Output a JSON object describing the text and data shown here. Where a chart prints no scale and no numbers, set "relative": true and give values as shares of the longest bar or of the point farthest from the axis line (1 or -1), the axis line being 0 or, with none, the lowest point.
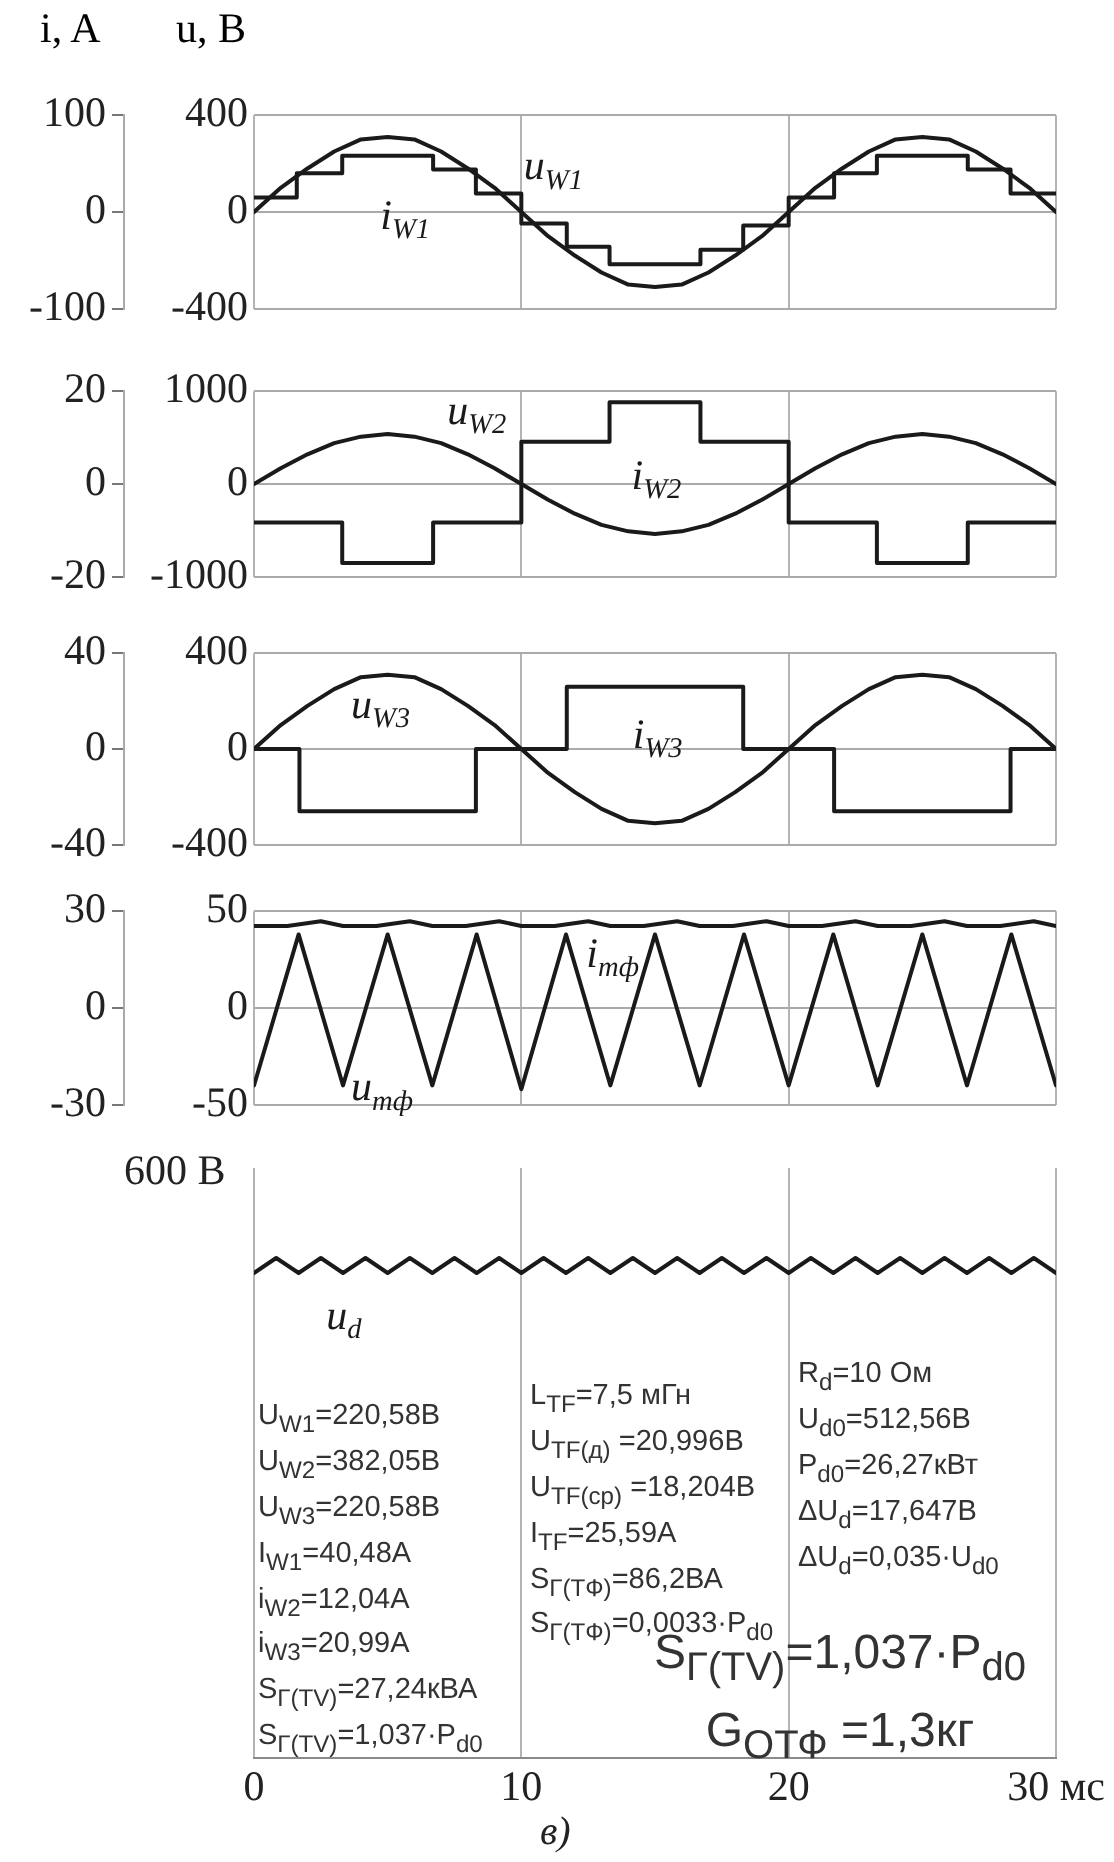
{
  "chart_data": [
    {
      "type": "line",
      "ylabel": "i, A",
      "y2label": "u, В",
      "xlim": [
        0,
        30
      ],
      "xticks": [
        0,
        10,
        20,
        30
      ],
      "ylim": [
        -100,
        100
      ],
      "yticks": [
        -100,
        0,
        100
      ],
      "y2lim": [
        -400,
        400
      ],
      "y2ticks": [
        -400,
        0,
        400
      ],
      "grid": true,
      "tick_labels": "y",
      "series": [
        {
          "name": "u$_{W1}$",
          "axis": "y2",
          "color": "#1a1a1a",
          "x": [
            0,
            1,
            2,
            3,
            4,
            5,
            6,
            7,
            8,
            9,
            10,
            11,
            12,
            13,
            14,
            15,
            16,
            17,
            18,
            19,
            20,
            21,
            22,
            23,
            24,
            25,
            26,
            27,
            28,
            29,
            30
          ],
          "values": [
            0,
            100,
            180,
            250,
            300,
            310,
            300,
            250,
            180,
            100,
            0,
            -100,
            -180,
            -250,
            -300,
            -310,
            -300,
            -250,
            -180,
            -100,
            0,
            100,
            180,
            250,
            300,
            310,
            300,
            250,
            180,
            100,
            0
          ]
        },
        {
          "name": "i$_{W1}$",
          "type": "step",
          "axis": "y",
          "color": "#1a1a1a",
          "x": [
            0,
            1.6,
            3.3,
            6.7,
            8.3,
            10,
            11.7,
            13.3,
            16.7,
            18.3,
            20,
            21.7,
            23.3,
            26.7,
            28.3,
            30
          ],
          "values": [
            15,
            40,
            58,
            44,
            19,
            -12,
            -36,
            -54,
            -39,
            -14,
            15,
            40,
            58,
            44,
            19,
            19
          ]
        }
      ]
    },
    {
      "type": "line",
      "xlim": [
        0,
        30
      ],
      "xticks": [
        0,
        10,
        20,
        30
      ],
      "ylim": [
        -20,
        20
      ],
      "yticks": [
        -20,
        0,
        20
      ],
      "y2lim": [
        -1000,
        1000
      ],
      "y2ticks": [
        -1000,
        0,
        1000
      ],
      "grid": true,
      "tick_labels": "y",
      "series": [
        {
          "name": "u$_{W2}$",
          "axis": "y2",
          "color": "#1a1a1a",
          "x": [
            0,
            1,
            2,
            3,
            4,
            5,
            6,
            7,
            8,
            9,
            10,
            11,
            12,
            13,
            14,
            15,
            16,
            17,
            18,
            19,
            20,
            21,
            22,
            23,
            24,
            25,
            26,
            27,
            28,
            29,
            30
          ],
          "values": [
            0,
            170,
            320,
            440,
            510,
            540,
            510,
            440,
            320,
            170,
            0,
            -170,
            -320,
            -440,
            -510,
            -540,
            -510,
            -440,
            -320,
            -170,
            0,
            170,
            320,
            440,
            510,
            540,
            510,
            440,
            320,
            170,
            0
          ]
        },
        {
          "name": "i$_{W2}$",
          "type": "step",
          "axis": "y",
          "color": "#1a1a1a",
          "x": [
            0,
            3.3,
            6.7,
            10,
            13.3,
            16.7,
            20,
            23.3,
            26.7,
            30
          ],
          "values": [
            -8.3,
            -17,
            -8.3,
            9.1,
            17.6,
            9.1,
            -8.3,
            -17,
            -8.3,
            -8.3
          ]
        }
      ]
    },
    {
      "type": "line",
      "xlim": [
        0,
        30
      ],
      "xticks": [
        0,
        10,
        20,
        30
      ],
      "ylim": [
        -40,
        40
      ],
      "yticks": [
        -40,
        0,
        40
      ],
      "y2lim": [
        -400,
        400
      ],
      "y2ticks": [
        -400,
        0,
        400
      ],
      "grid": true,
      "tick_labels": "y",
      "series": [
        {
          "name": "u$_{W3}$",
          "axis": "y2",
          "color": "#1a1a1a",
          "x": [
            0,
            1,
            2,
            3,
            4,
            5,
            6,
            7,
            8,
            9,
            10,
            11,
            12,
            13,
            14,
            15,
            16,
            17,
            18,
            19,
            20,
            21,
            22,
            23,
            24,
            25,
            26,
            27,
            28,
            29,
            30
          ],
          "values": [
            0,
            100,
            180,
            250,
            300,
            310,
            300,
            250,
            180,
            100,
            0,
            -100,
            -180,
            -250,
            -300,
            -310,
            -300,
            -250,
            -180,
            -100,
            0,
            100,
            180,
            250,
            300,
            310,
            300,
            250,
            180,
            100,
            0
          ]
        },
        {
          "name": "i$_{W3}$",
          "type": "step",
          "axis": "y",
          "color": "#1a1a1a",
          "x": [
            0,
            1.7,
            8.3,
            11.7,
            18.3,
            21.7,
            28.3,
            30
          ],
          "values": [
            0,
            -26,
            0,
            26,
            0,
            -26,
            0,
            0
          ]
        }
      ]
    },
    {
      "type": "line",
      "xlim": [
        0,
        30
      ],
      "xticks": [
        0,
        10,
        20,
        30
      ],
      "ylim": [
        -30,
        30
      ],
      "yticks": [
        -30,
        0,
        30
      ],
      "y2lim": [
        -50,
        50
      ],
      "y2ticks": [
        -50,
        0,
        50
      ],
      "grid": true,
      "tick_labels": "y",
      "series": [
        {
          "name": "i$_{тф}$",
          "axis": "y",
          "color": "#1a1a1a",
          "x": [
            0,
            1.25,
            2.5,
            3.33,
            4.58,
            5.83,
            6.67,
            7.92,
            9.17,
            10,
            11.25,
            12.5,
            13.33,
            14.58,
            15.83,
            16.67,
            17.92,
            19.17,
            20,
            21.25,
            22.5,
            23.33,
            24.58,
            25.83,
            26.67,
            27.92,
            29.17,
            30
          ],
          "values": [
            25.4,
            25.4,
            26.9,
            25.4,
            25.4,
            26.9,
            25.4,
            25.4,
            26.9,
            25.4,
            25.4,
            26.9,
            25.4,
            25.4,
            26.9,
            25.4,
            25.4,
            26.9,
            25.4,
            25.4,
            26.9,
            25.4,
            25.4,
            26.9,
            25.4,
            25.4,
            26.9,
            25.4
          ]
        },
        {
          "name": "u$_{тф}$",
          "axis": "y2",
          "color": "#1a1a1a",
          "x": [
            0,
            1.67,
            3.33,
            5,
            6.67,
            8.33,
            10,
            11.67,
            13.33,
            15,
            16.67,
            18.33,
            20,
            21.67,
            23.33,
            25,
            26.67,
            28.33,
            30
          ],
          "values": [
            -40,
            38,
            -40,
            38,
            -40,
            38,
            -42,
            38,
            -40,
            38,
            -40,
            38,
            -40,
            38,
            -40,
            38,
            -40,
            38,
            -40
          ]
        }
      ]
    },
    {
      "type": "line",
      "relative": true,
      "xlim": [
        0,
        30
      ],
      "xticks": [
        0,
        10,
        20,
        {
          "value": 30,
          "label": "30 мс"
        }
      ],
      "grid": "x",
      "series": [
        {
          "name": "u$_{d}$",
          "color": "#1a1a1a",
          "x": [
            0,
            0.83,
            1.67,
            2.5,
            3.33,
            4.17,
            5,
            5.83,
            6.67,
            7.5,
            8.33,
            9.17,
            10,
            10.83,
            11.67,
            12.5,
            13.33,
            14.17,
            15,
            15.83,
            16.67,
            17.5,
            18.33,
            19.17,
            20,
            20.83,
            21.67,
            22.5,
            23.33,
            24.17,
            25,
            25.83,
            26.67,
            27.5,
            28.33,
            29.17,
            30
          ],
          "values": [
            0.97,
            1,
            0.97,
            1,
            0.97,
            1,
            0.97,
            1,
            0.97,
            1,
            0.97,
            1,
            0.97,
            1,
            0.97,
            1,
            0.97,
            1,
            0.97,
            1,
            0.97,
            1,
            0.97,
            1,
            0.97,
            1,
            0.97,
            1,
            0.97,
            1,
            0.97,
            1,
            0.97,
            1,
            0.97,
            1,
            0.97
          ]
        }
      ],
      "annotations": [
        "600 В",
        "U$_{W1}$=220,58В",
        "U$_{W2}$=382,05В",
        "U$_{W3}$=220,58В",
        "I$_{W1}$=40,48А",
        "i$_{W2}$=12,04А",
        "i$_{W3}$=20,99А",
        "S$_{Г(TV)}$=27,24кВА",
        "S$_{Г(TV)}$=1,037·P$_{d0}$",
        "L$_{TF}$=7,5 мГн",
        "U$_{TF(д)}$ =20,996В",
        "U$_{TF(ср)}$ =18,204В",
        "I$_{TF}$=25,59А",
        "S$_{Г(TФ)}$=86,2ВА",
        "S$_{Г(TФ)}$=0,0033·P$_{d0}$",
        "R$_{d}$=10 Ом",
        "U$_{d0}$=512,56В",
        "P$_{d0}$=26,27кВт",
        "ΔU$_{d}$=17,647В",
        "ΔU$_{d}$=0,035·U$_{d0}$",
        "S$_{Г(TV)}$=1,037·P$_{d0}$",
        "G$_{ОТФ}$ =1,3кг",
        "в)"
      ]
    }
  ]
}
